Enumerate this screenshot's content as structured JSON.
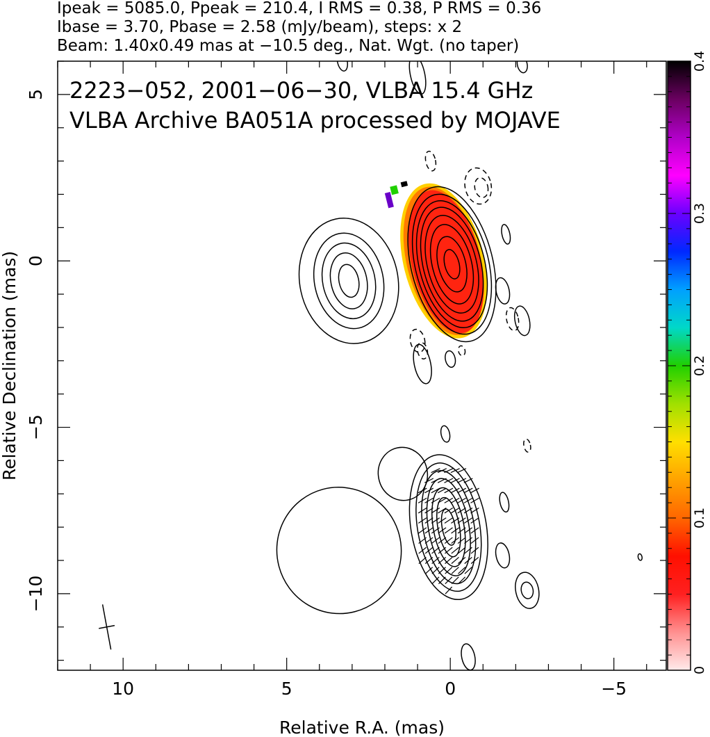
{
  "header": {
    "line1": "Ipeak = 5085.0, Ppeak = 210.4, I RMS = 0.38, P RMS = 0.36",
    "line2": "Ibase = 3.70, Pbase = 2.58 (mJy/beam), steps: x 2",
    "line3": "Beam: 1.40x0.49 mas at −10.5 deg., Nat. Wgt. (no taper)"
  },
  "annotations": {
    "title": "2223−052, 2001−06−30, VLBA 15.4 GHz",
    "subtitle": "VLBA Archive BA051A processed by MOJAVE"
  },
  "chart_data": {
    "type": "contour",
    "xlabel": "Relative R.A. (mas)",
    "ylabel": "Relative Declination (mas)",
    "xlim": [
      12.0,
      -6.6
    ],
    "ylim": [
      -12.3,
      6.0
    ],
    "x_reversed": true,
    "xticks": [
      10,
      5,
      0,
      -5
    ],
    "xtick_labels": [
      "10",
      "5",
      "0",
      "−5"
    ],
    "yticks": [
      5,
      0,
      -5,
      -10
    ],
    "ytick_labels": [
      "5",
      "0",
      "−5",
      "−10"
    ],
    "colorbar": {
      "min": 0,
      "max": 0.4,
      "ticks": [
        0,
        0.1,
        0.2,
        0.3,
        0.4
      ],
      "tick_labels": [
        "0",
        "0.1",
        "0.2",
        "0.3",
        "0.4"
      ],
      "colormap": [
        "#ffeaea",
        "#ff9090",
        "#ff2020",
        "#ff1000",
        "#ff6600",
        "#ffa200",
        "#ffdf00",
        "#a0e000",
        "#20d000",
        "#00d8c8",
        "#00a0ff",
        "#0028ff",
        "#6a00ff",
        "#ff00ff",
        "#b000c8",
        "#6a0060",
        "#000000"
      ]
    },
    "beam": {
      "major_mas": 1.4,
      "minor_mas": 0.49,
      "pa_deg": -10.5,
      "center": [
        10.5,
        -11.0
      ]
    },
    "upper_component": {
      "center": [
        -0.05,
        -0.1
      ],
      "contours": [
        {
          "rx": 0.22,
          "ry": 0.45
        },
        {
          "rx": 0.42,
          "ry": 0.85
        },
        {
          "rx": 0.6,
          "ry": 1.22
        },
        {
          "rx": 0.75,
          "ry": 1.5
        },
        {
          "rx": 0.88,
          "ry": 1.75
        },
        {
          "rx": 1.0,
          "ry": 1.95
        },
        {
          "rx": 1.12,
          "ry": 2.15
        },
        {
          "rx": 1.25,
          "ry": 2.38
        }
      ]
    },
    "upper_west_blob": {
      "center": [
        3.1,
        -0.6
      ],
      "contours": [
        {
          "rx": 0.3,
          "ry": 0.5
        },
        {
          "rx": 0.55,
          "ry": 0.85
        },
        {
          "rx": 0.8,
          "ry": 1.15
        },
        {
          "rx": 1.05,
          "ry": 1.45
        },
        {
          "rx": 1.5,
          "ry": 1.9
        }
      ]
    },
    "polarization_fraction_blob": {
      "center": [
        0.2,
        0.0
      ],
      "value_range": [
        0.05,
        0.4
      ]
    },
    "lower_component": {
      "center": [
        0.05,
        -8.0
      ],
      "contours": [
        {
          "rx": 0.2,
          "ry": 0.55
        },
        {
          "rx": 0.33,
          "ry": 0.9
        },
        {
          "rx": 0.47,
          "ry": 1.2
        },
        {
          "rx": 0.62,
          "ry": 1.48
        },
        {
          "rx": 0.78,
          "ry": 1.72
        },
        {
          "rx": 0.95,
          "ry": 1.95
        },
        {
          "rx": 1.15,
          "ry": 2.2
        }
      ]
    },
    "lower_west_blob": {
      "center": [
        3.4,
        -8.7
      ],
      "rx": 1.9,
      "ry": 1.9
    },
    "small_islands": [
      {
        "x": 1.0,
        "y": 5.6,
        "rx": 0.22,
        "ry": 0.6,
        "neg": false
      },
      {
        "x": 3.3,
        "y": 6.0,
        "rx": 0.15,
        "ry": 0.3,
        "neg": false
      },
      {
        "x": -2.2,
        "y": 5.9,
        "rx": 0.15,
        "ry": 0.25,
        "neg": false
      },
      {
        "x": 0.6,
        "y": 3.0,
        "rx": 0.15,
        "ry": 0.3,
        "neg": true
      },
      {
        "x": -0.85,
        "y": 2.25,
        "rx": 0.4,
        "ry": 0.55,
        "neg": true
      },
      {
        "x": -0.95,
        "y": 2.2,
        "rx": 0.2,
        "ry": 0.3,
        "neg": true
      },
      {
        "x": -1.7,
        "y": 0.8,
        "rx": 0.12,
        "ry": 0.3,
        "neg": false
      },
      {
        "x": -1.6,
        "y": -0.9,
        "rx": 0.2,
        "ry": 0.4,
        "neg": false
      },
      {
        "x": -1.9,
        "y": -1.75,
        "rx": 0.18,
        "ry": 0.35,
        "neg": true
      },
      {
        "x": -2.2,
        "y": -1.8,
        "rx": 0.22,
        "ry": 0.45,
        "neg": false
      },
      {
        "x": 1.0,
        "y": -2.4,
        "rx": 0.22,
        "ry": 0.35,
        "neg": true
      },
      {
        "x": 0.85,
        "y": -2.7,
        "rx": 0.15,
        "ry": 0.25,
        "neg": true
      },
      {
        "x": 0.85,
        "y": -3.1,
        "rx": 0.25,
        "ry": 0.6,
        "neg": false
      },
      {
        "x": 0.0,
        "y": -2.95,
        "rx": 0.15,
        "ry": 0.25,
        "neg": false
      },
      {
        "x": -0.35,
        "y": -2.7,
        "rx": 0.1,
        "ry": 0.15,
        "neg": true
      },
      {
        "x": 0.15,
        "y": -5.2,
        "rx": 0.13,
        "ry": 0.25,
        "neg": false
      },
      {
        "x": -2.35,
        "y": -5.55,
        "rx": 0.1,
        "ry": 0.2,
        "neg": true
      },
      {
        "x": 1.45,
        "y": -6.4,
        "rx": 0.75,
        "ry": 0.8,
        "neg": false
      },
      {
        "x": -1.65,
        "y": -7.25,
        "rx": 0.13,
        "ry": 0.3,
        "neg": false
      },
      {
        "x": -1.6,
        "y": -8.85,
        "rx": 0.2,
        "ry": 0.38,
        "neg": false
      },
      {
        "x": -2.35,
        "y": -9.9,
        "rx": 0.18,
        "ry": 0.25,
        "neg": false
      },
      {
        "x": -2.35,
        "y": -9.9,
        "rx": 0.35,
        "ry": 0.55,
        "neg": false
      },
      {
        "x": -5.8,
        "y": -8.9,
        "rx": 0.06,
        "ry": 0.1,
        "neg": false
      },
      {
        "x": -0.55,
        "y": -11.9,
        "rx": 0.2,
        "ry": 0.4,
        "neg": false
      }
    ]
  }
}
